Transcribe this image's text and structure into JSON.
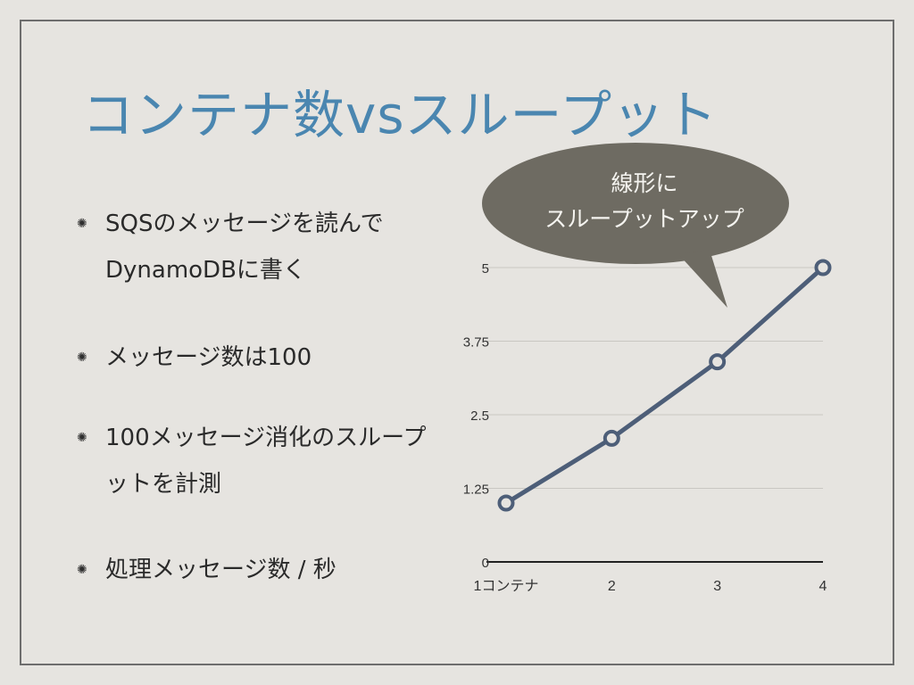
{
  "slide": {
    "title": "コンテナ数vsスループット"
  },
  "bullets": [
    {
      "icon": "asterisk-bullet-icon",
      "text": "SQSのメッセージを読んでDynamoDBに書く"
    },
    {
      "icon": "asterisk-bullet-icon",
      "text": "メッセージ数は100"
    },
    {
      "icon": "asterisk-bullet-icon",
      "text": "100メッセージ消化のスループットを計測"
    },
    {
      "icon": "asterisk-bullet-icon",
      "text": "処理メッセージ数 / 秒"
    }
  ],
  "callout": {
    "line1": "線形に",
    "line2": "スループットアップ"
  },
  "colors": {
    "title": "#4a86b0",
    "line": "#4d5e78",
    "bubble": "#6e6b62",
    "background": "#e6e4e0"
  },
  "chart_data": {
    "type": "line",
    "title": "",
    "xlabel": "",
    "ylabel": "",
    "categories": [
      "1コンテナ",
      "2",
      "3",
      "4"
    ],
    "series": [
      {
        "values": [
          1,
          2.1,
          3.4,
          5
        ]
      }
    ],
    "ylim": [
      0,
      5
    ],
    "yticks": [
      "0",
      "1.25",
      "2.5",
      "3.75",
      "5"
    ],
    "grid": true,
    "legend": "none"
  }
}
